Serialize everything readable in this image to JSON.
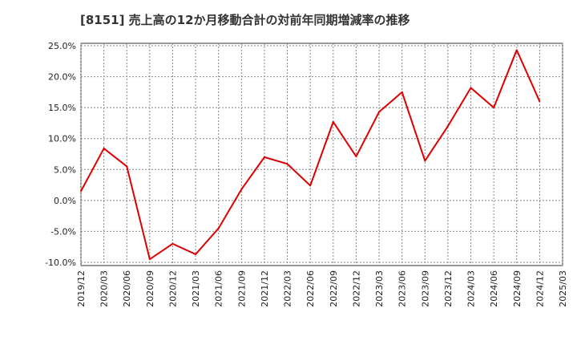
{
  "chart_data": {
    "type": "line",
    "title": "[8151]  売上高の12か月移動合計の対前年同期増減率の推移",
    "xlabel": "",
    "ylabel": "",
    "ylim": [
      -10.0,
      25.0
    ],
    "y_ticks": [
      25.0,
      20.0,
      15.0,
      10.0,
      5.0,
      0.0,
      -5.0,
      -10.0
    ],
    "y_tick_labels": [
      "25.0%",
      "20.0%",
      "15.0%",
      "10.0%",
      "5.0%",
      "0.0%",
      "-5.0%",
      "-10.0%"
    ],
    "x_tick_labels": [
      "2019/12",
      "2020/03",
      "2020/06",
      "2020/09",
      "2020/12",
      "2021/03",
      "2021/06",
      "2021/09",
      "2021/12",
      "2022/03",
      "2022/06",
      "2022/09",
      "2022/12",
      "2023/03",
      "2023/06",
      "2023/09",
      "2023/12",
      "2024/03",
      "2024/06",
      "2024/09",
      "2024/12",
      "2025/03"
    ],
    "grid": true,
    "series": [
      {
        "name": "対前年同期増減率",
        "color": "#dd0000",
        "x": [
          "2019/12",
          "2020/03",
          "2020/06",
          "2020/09",
          "2020/12",
          "2021/03",
          "2021/06",
          "2021/09",
          "2021/12",
          "2022/03",
          "2022/06",
          "2022/09",
          "2022/12",
          "2023/03",
          "2023/06",
          "2023/09",
          "2023/12",
          "2024/03",
          "2024/06",
          "2024/09",
          "2024/12"
        ],
        "values": [
          1.5,
          8.4,
          5.5,
          -9.5,
          -7.0,
          -8.7,
          -4.5,
          1.8,
          7.0,
          5.9,
          2.4,
          12.7,
          7.1,
          14.3,
          17.5,
          6.4,
          12.0,
          18.2,
          15.0,
          24.3,
          16.0
        ]
      }
    ]
  }
}
